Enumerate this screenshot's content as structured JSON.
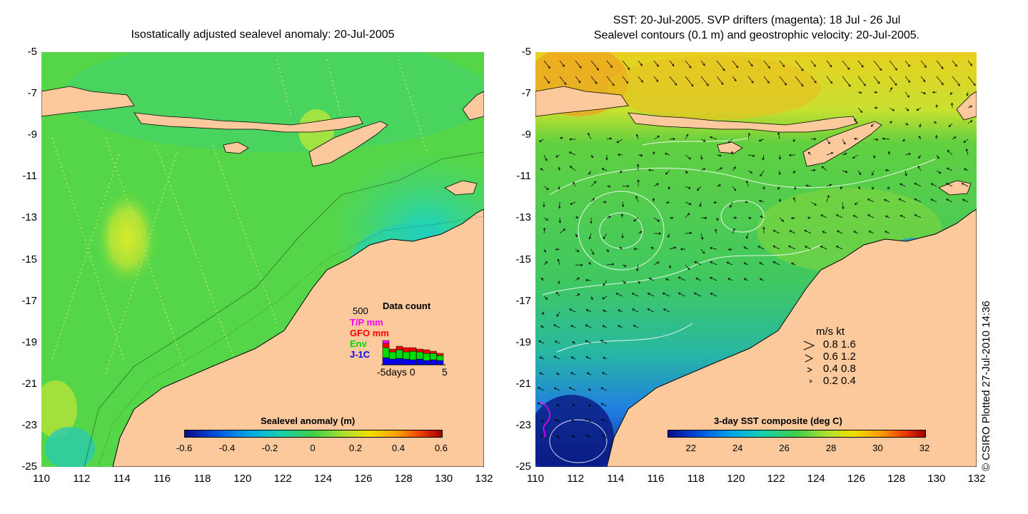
{
  "left_panel": {
    "title": "Isostatically adjusted sealevel anomaly: 20-Jul-2005",
    "y_ticks": [
      "-5",
      "-7",
      "-9",
      "-11",
      "-13",
      "-15",
      "-17",
      "-19",
      "-21",
      "-23",
      "-25"
    ],
    "x_ticks": [
      "110",
      "112",
      "114",
      "116",
      "118",
      "120",
      "122",
      "124",
      "126",
      "128",
      "130",
      "132"
    ],
    "colorbar": {
      "title": "Sealevel anomaly (m)",
      "labels": [
        "-0.6",
        "-0.4",
        "-0.2",
        "0",
        "0.2",
        "0.4",
        "0.6"
      ],
      "range": [
        -0.6,
        0.6
      ]
    },
    "data_count": {
      "title": "Data count",
      "scale": "500",
      "sources": [
        {
          "name": "T/P mm",
          "color": "#ff00ff"
        },
        {
          "name": "GFO mm",
          "color": "#ff0000"
        },
        {
          "name": "Env",
          "color": "#00dd00"
        },
        {
          "name": "J-1C",
          "color": "#0000ff"
        }
      ],
      "xlabel": "-5days 0",
      "xlabel_end": "5"
    }
  },
  "right_panel": {
    "title_line1": "SST: 20-Jul-2005. SVP drifters (magenta): 18 Jul - 26 Jul",
    "title_line2": "Sealevel contours (0.1 m) and geostrophic velocity: 20-Jul-2005.",
    "y_ticks": [
      "-5",
      "-7",
      "-9",
      "-11",
      "-13",
      "-15",
      "-17",
      "-19",
      "-21",
      "-23",
      "-25"
    ],
    "x_ticks": [
      "110",
      "112",
      "114",
      "116",
      "118",
      "120",
      "122",
      "124",
      "126",
      "128",
      "130",
      "132"
    ],
    "colorbar": {
      "title": "3-day SST composite (deg C)",
      "labels": [
        "22",
        "24",
        "26",
        "28",
        "30",
        "32"
      ],
      "range": [
        21,
        32
      ]
    },
    "velocity_legend": {
      "header": "m/s  kt",
      "rows": [
        "0.8  1.6",
        "0.6  1.2",
        "0.4  0.8",
        "0.2  0.4"
      ]
    }
  },
  "credit": "© CSIRO Plotted 27-Jul-2010 14:36",
  "colors": {
    "land": "#fbc99b",
    "sla_sea": "#55d648",
    "sst_sea": "#45cf5a"
  }
}
